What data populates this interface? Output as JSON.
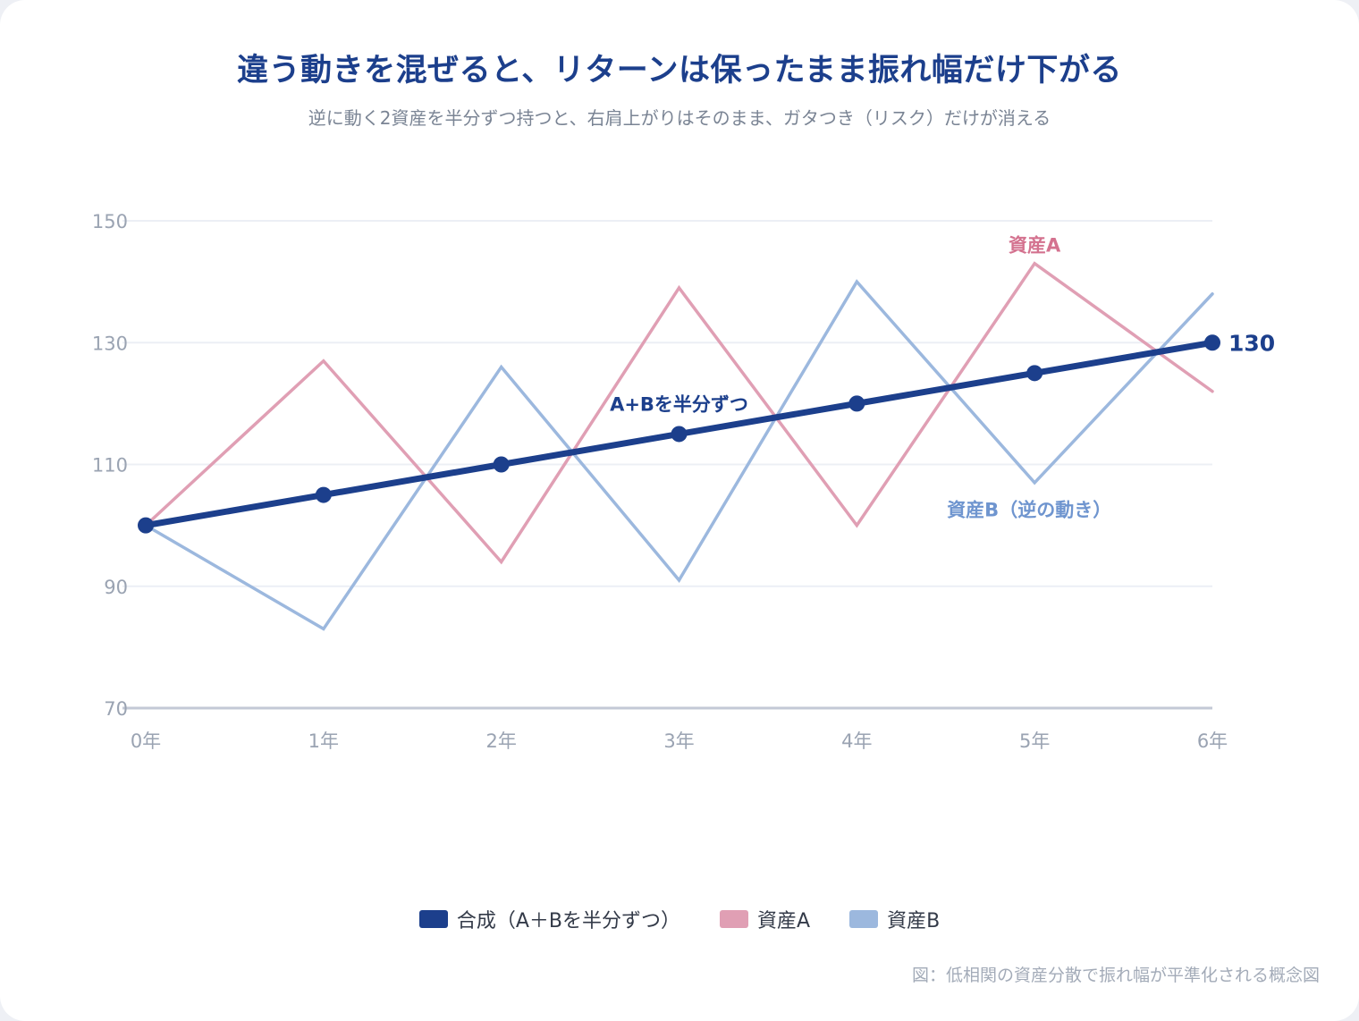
{
  "title": "違う動きを混ぜると、リターンは保ったまま振れ幅だけ下がる",
  "subtitle": "逆に動く2資産を半分ずつ持つと、右肩上がりはそのまま、ガタつき（リスク）だけが消える",
  "caption": "図：低相関の資産分散で振れ幅が平準化される概念図",
  "legend": [
    {
      "label": "合成（A＋Bを半分ずつ）",
      "color": "#1c3f8c"
    },
    {
      "label": "資産A",
      "color": "#e09fb4"
    },
    {
      "label": "資産B",
      "color": "#9cb8de"
    }
  ],
  "chart_data": {
    "type": "line",
    "x": [
      "0年",
      "1年",
      "2年",
      "3年",
      "4年",
      "5年",
      "6年"
    ],
    "ylim": [
      70,
      150
    ],
    "yticks": [
      70,
      90,
      110,
      130,
      150
    ],
    "grid": true,
    "series": [
      {
        "name": "資産A",
        "color": "#e09fb4",
        "values": [
          100,
          127,
          94,
          139,
          100,
          143,
          122
        ]
      },
      {
        "name": "資産B",
        "color": "#9cb8de",
        "values": [
          100,
          83,
          126,
          91,
          140,
          107,
          138
        ]
      },
      {
        "name": "合成（A＋Bを半分ずつ）",
        "color": "#1c3f8c",
        "values": [
          100,
          105,
          110,
          115,
          120,
          125,
          130
        ]
      }
    ],
    "annotations": [
      {
        "text": "資産A",
        "x": 5,
        "y": 146,
        "color": "#d4728f"
      },
      {
        "text": "資産B（逆の動き）",
        "x": 4.97,
        "y": 102.5,
        "color": "#6f95cf"
      },
      {
        "text": "A+Bを半分ずつ",
        "x": 3.0,
        "y": 119.8,
        "color": "#1c3f8c"
      },
      {
        "text": "130",
        "x": 6,
        "y": 130,
        "color": "#1c3f8c"
      }
    ]
  }
}
